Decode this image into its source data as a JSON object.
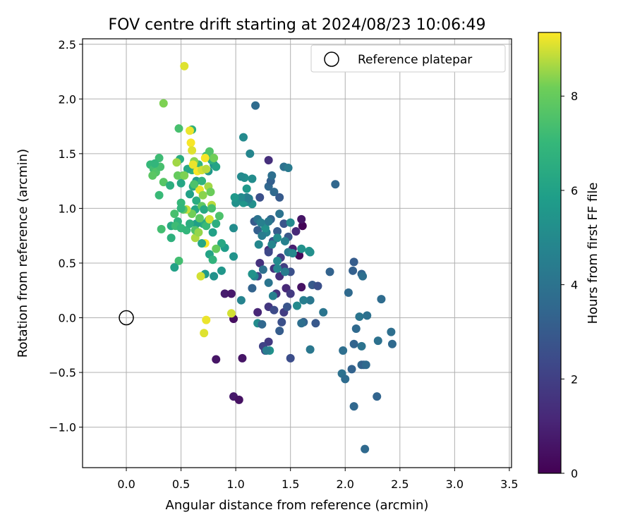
{
  "chart_data": {
    "type": "scatter",
    "title": "FOV centre drift starting at 2024/08/23 10:06:49",
    "xlabel": "Angular distance from reference (arcmin)",
    "ylabel": "Rotation from reference (arcmin)",
    "xlim": [
      -0.4,
      3.52
    ],
    "ylim": [
      -1.37,
      2.55
    ],
    "x_ticks": [
      0.0,
      0.5,
      1.0,
      1.5,
      2.0,
      2.5,
      3.0,
      3.5
    ],
    "x_tick_labels": [
      "0.0",
      "0.5",
      "1.0",
      "1.5",
      "2.0",
      "2.5",
      "3.0",
      "3.5"
    ],
    "y_ticks": [
      -1.0,
      -0.5,
      0.0,
      0.5,
      1.0,
      1.5,
      2.0,
      2.5
    ],
    "y_tick_labels": [
      "−1.0",
      "−0.5",
      "0.0",
      "0.5",
      "1.0",
      "1.5",
      "2.0",
      "2.5"
    ],
    "grid": true,
    "legend": {
      "position": "top-right",
      "entries": [
        "Reference platepar"
      ]
    },
    "reference_point": {
      "x": 0.0,
      "y": 0.0
    },
    "colorbar": {
      "label": "Hours from first FF file",
      "range": [
        0,
        9.35
      ],
      "ticks": [
        0,
        2,
        4,
        6,
        8
      ],
      "tick_labels": [
        "0",
        "2",
        "4",
        "6",
        "8"
      ],
      "colormap": "viridis"
    },
    "points": [
      {
        "x": 1.61,
        "y": 0.84,
        "c": 0.1
      },
      {
        "x": 1.6,
        "y": 0.9,
        "c": 0.6
      },
      {
        "x": 1.52,
        "y": 0.63,
        "c": 0.9
      },
      {
        "x": 1.58,
        "y": 0.57,
        "c": 0.2
      },
      {
        "x": 1.55,
        "y": 0.79,
        "c": 1.2
      },
      {
        "x": 1.6,
        "y": 0.28,
        "c": 0.5
      },
      {
        "x": 0.9,
        "y": 0.22,
        "c": 0.8
      },
      {
        "x": 0.96,
        "y": 0.22,
        "c": 0.7
      },
      {
        "x": 0.98,
        "y": -0.01,
        "c": 0.4
      },
      {
        "x": 0.82,
        "y": -0.38,
        "c": 0.6
      },
      {
        "x": 0.98,
        "y": -0.72,
        "c": 0.7
      },
      {
        "x": 1.03,
        "y": -0.75,
        "c": 0.5
      },
      {
        "x": 1.06,
        "y": -0.37,
        "c": 0.6
      },
      {
        "x": 1.22,
        "y": 0.5,
        "c": 1.5
      },
      {
        "x": 1.3,
        "y": 0.62,
        "c": 1.3
      },
      {
        "x": 1.35,
        "y": 0.45,
        "c": 1.6
      },
      {
        "x": 1.4,
        "y": 0.38,
        "c": 1.4
      },
      {
        "x": 1.46,
        "y": 0.27,
        "c": 1.2
      },
      {
        "x": 1.5,
        "y": 0.22,
        "c": 1.8
      },
      {
        "x": 1.3,
        "y": 0.1,
        "c": 1.7
      },
      {
        "x": 1.2,
        "y": 0.05,
        "c": 1.1
      },
      {
        "x": 1.3,
        "y": -0.22,
        "c": 1.8
      },
      {
        "x": 1.25,
        "y": -0.26,
        "c": 2.1
      },
      {
        "x": 1.27,
        "y": -0.3,
        "c": 1.9
      },
      {
        "x": 1.5,
        "y": -0.37,
        "c": 2.5
      },
      {
        "x": 1.44,
        "y": 0.05,
        "c": 1.9
      },
      {
        "x": 1.37,
        "y": 0.22,
        "c": 1.6
      },
      {
        "x": 1.2,
        "y": 0.38,
        "c": 2.2
      },
      {
        "x": 1.44,
        "y": 0.46,
        "c": 2.0
      },
      {
        "x": 1.5,
        "y": 0.42,
        "c": 2.6
      },
      {
        "x": 1.41,
        "y": 0.55,
        "c": 1.9
      },
      {
        "x": 1.3,
        "y": 0.6,
        "c": 2.3
      },
      {
        "x": 1.34,
        "y": 0.7,
        "c": 2.7
      },
      {
        "x": 1.44,
        "y": 0.86,
        "c": 2.8
      },
      {
        "x": 1.3,
        "y": 1.44,
        "c": 1.4
      },
      {
        "x": 1.22,
        "y": 1.1,
        "c": 2.6
      },
      {
        "x": 1.17,
        "y": 0.88,
        "c": 3.0
      },
      {
        "x": 1.2,
        "y": 0.8,
        "c": 3.2
      },
      {
        "x": 1.32,
        "y": 0.9,
        "c": 3.4
      },
      {
        "x": 1.38,
        "y": 0.79,
        "c": 3.1
      },
      {
        "x": 1.48,
        "y": 0.74,
        "c": 2.9
      },
      {
        "x": 1.3,
        "y": 1.2,
        "c": 3.5
      },
      {
        "x": 1.32,
        "y": 1.25,
        "c": 3.2
      },
      {
        "x": 1.35,
        "y": 1.15,
        "c": 3.6
      },
      {
        "x": 1.4,
        "y": 1.1,
        "c": 3.0
      },
      {
        "x": 1.44,
        "y": 1.38,
        "c": 3.9
      },
      {
        "x": 1.48,
        "y": 1.37,
        "c": 4.3
      },
      {
        "x": 1.33,
        "y": 1.3,
        "c": 3.8
      },
      {
        "x": 1.18,
        "y": 1.94,
        "c": 3.7
      },
      {
        "x": 1.91,
        "y": 1.22,
        "c": 3.5
      },
      {
        "x": 1.86,
        "y": 0.42,
        "c": 3.3
      },
      {
        "x": 2.03,
        "y": 0.23,
        "c": 3.6
      },
      {
        "x": 2.07,
        "y": 0.43,
        "c": 3.2
      },
      {
        "x": 2.08,
        "y": 0.51,
        "c": 3.1
      },
      {
        "x": 2.15,
        "y": 0.4,
        "c": 3.4
      },
      {
        "x": 2.16,
        "y": 0.38,
        "c": 3.8
      },
      {
        "x": 2.33,
        "y": 0.17,
        "c": 3.7
      },
      {
        "x": 2.2,
        "y": 0.02,
        "c": 3.9
      },
      {
        "x": 2.13,
        "y": 0.01,
        "c": 4.1
      },
      {
        "x": 2.1,
        "y": -0.1,
        "c": 3.6
      },
      {
        "x": 2.42,
        "y": -0.13,
        "c": 3.8
      },
      {
        "x": 2.43,
        "y": -0.24,
        "c": 3.6
      },
      {
        "x": 2.3,
        "y": -0.21,
        "c": 3.9
      },
      {
        "x": 2.15,
        "y": -0.26,
        "c": 4.0
      },
      {
        "x": 2.08,
        "y": -0.24,
        "c": 3.4
      },
      {
        "x": 1.98,
        "y": -0.3,
        "c": 3.8
      },
      {
        "x": 2.15,
        "y": -0.43,
        "c": 3.5
      },
      {
        "x": 2.17,
        "y": -0.43,
        "c": 3.2
      },
      {
        "x": 2.19,
        "y": -0.43,
        "c": 3.6
      },
      {
        "x": 2.06,
        "y": -0.47,
        "c": 3.3
      },
      {
        "x": 1.97,
        "y": -0.51,
        "c": 3.9
      },
      {
        "x": 2.0,
        "y": -0.56,
        "c": 3.7
      },
      {
        "x": 2.08,
        "y": -0.81,
        "c": 3.5
      },
      {
        "x": 2.29,
        "y": -0.72,
        "c": 3.4
      },
      {
        "x": 2.18,
        "y": -1.2,
        "c": 3.6
      },
      {
        "x": 1.7,
        "y": 0.3,
        "c": 3.0
      },
      {
        "x": 1.75,
        "y": 0.29,
        "c": 2.6
      },
      {
        "x": 1.68,
        "y": 0.16,
        "c": 4.2
      },
      {
        "x": 1.62,
        "y": 0.16,
        "c": 4.5
      },
      {
        "x": 1.56,
        "y": 0.11,
        "c": 5.0
      },
      {
        "x": 1.62,
        "y": -0.04,
        "c": 3.3
      },
      {
        "x": 1.6,
        "y": -0.05,
        "c": 3.8
      },
      {
        "x": 1.73,
        "y": -0.05,
        "c": 2.9
      },
      {
        "x": 1.8,
        "y": 0.05,
        "c": 4.1
      },
      {
        "x": 1.68,
        "y": -0.29,
        "c": 4.2
      },
      {
        "x": 1.35,
        "y": 0.07,
        "c": 2.4
      },
      {
        "x": 1.42,
        "y": -0.04,
        "c": 2.6
      },
      {
        "x": 1.47,
        "y": 0.1,
        "c": 2.8
      },
      {
        "x": 1.4,
        "y": -0.12,
        "c": 3.1
      },
      {
        "x": 1.31,
        "y": -0.3,
        "c": 5.3
      },
      {
        "x": 1.28,
        "y": -0.3,
        "c": 4.4
      },
      {
        "x": 1.2,
        "y": -0.05,
        "c": 5.1
      },
      {
        "x": 1.24,
        "y": -0.06,
        "c": 3.5
      },
      {
        "x": 1.05,
        "y": 0.16,
        "c": 4.7
      },
      {
        "x": 1.15,
        "y": 0.27,
        "c": 3.3
      },
      {
        "x": 1.17,
        "y": 0.38,
        "c": 4.8
      },
      {
        "x": 1.15,
        "y": 0.4,
        "c": 5.4
      },
      {
        "x": 1.25,
        "y": 0.44,
        "c": 3.9
      },
      {
        "x": 1.3,
        "y": 0.32,
        "c": 4.1
      },
      {
        "x": 1.34,
        "y": 0.2,
        "c": 4.6
      },
      {
        "x": 1.38,
        "y": 0.45,
        "c": 4.9
      },
      {
        "x": 1.45,
        "y": 0.42,
        "c": 4.4
      },
      {
        "x": 1.38,
        "y": 0.52,
        "c": 5.0
      },
      {
        "x": 1.48,
        "y": 0.6,
        "c": 4.3
      },
      {
        "x": 1.52,
        "y": 0.59,
        "c": 4.9
      },
      {
        "x": 1.6,
        "y": 0.63,
        "c": 5.3
      },
      {
        "x": 1.67,
        "y": 0.61,
        "c": 5.6
      },
      {
        "x": 1.68,
        "y": 0.6,
        "c": 5.2
      },
      {
        "x": 1.5,
        "y": 0.87,
        "c": 5.0
      },
      {
        "x": 1.45,
        "y": 0.7,
        "c": 4.6
      },
      {
        "x": 1.38,
        "y": 0.73,
        "c": 5.1
      },
      {
        "x": 1.33,
        "y": 0.67,
        "c": 4.8
      },
      {
        "x": 1.28,
        "y": 0.78,
        "c": 4.7
      },
      {
        "x": 1.24,
        "y": 0.75,
        "c": 4.4
      },
      {
        "x": 1.27,
        "y": 0.82,
        "c": 5.3
      },
      {
        "x": 1.3,
        "y": 0.88,
        "c": 4.2
      },
      {
        "x": 1.2,
        "y": 0.9,
        "c": 4.0
      },
      {
        "x": 1.23,
        "y": 0.87,
        "c": 4.6
      },
      {
        "x": 1.21,
        "y": 0.67,
        "c": 4.9
      },
      {
        "x": 1.4,
        "y": 0.95,
        "c": 4.0
      },
      {
        "x": 1.15,
        "y": 1.04,
        "c": 5.2
      },
      {
        "x": 1.1,
        "y": 1.06,
        "c": 4.9
      },
      {
        "x": 1.07,
        "y": 1.05,
        "c": 5.5
      },
      {
        "x": 1.1,
        "y": 1.1,
        "c": 4.7
      },
      {
        "x": 1.05,
        "y": 1.1,
        "c": 5.0
      },
      {
        "x": 1.0,
        "y": 1.05,
        "c": 5.3
      },
      {
        "x": 1.12,
        "y": 1.09,
        "c": 4.5
      },
      {
        "x": 1.15,
        "y": 1.27,
        "c": 5.1
      },
      {
        "x": 1.08,
        "y": 1.28,
        "c": 5.2
      },
      {
        "x": 1.05,
        "y": 1.29,
        "c": 5.0
      },
      {
        "x": 1.1,
        "y": 1.18,
        "c": 5.6
      },
      {
        "x": 1.13,
        "y": 1.5,
        "c": 4.8
      },
      {
        "x": 1.07,
        "y": 1.65,
        "c": 5.0
      },
      {
        "x": 0.99,
        "y": 1.1,
        "c": 5.6
      },
      {
        "x": 0.98,
        "y": 0.82,
        "c": 5.1
      },
      {
        "x": 0.9,
        "y": 0.64,
        "c": 5.8
      },
      {
        "x": 0.98,
        "y": 0.56,
        "c": 5.4
      },
      {
        "x": 0.87,
        "y": 0.68,
        "c": 6.3
      },
      {
        "x": 0.87,
        "y": 0.43,
        "c": 5.5
      },
      {
        "x": 0.72,
        "y": 0.4,
        "c": 5.7
      },
      {
        "x": 0.8,
        "y": 0.38,
        "c": 5.3
      },
      {
        "x": 0.76,
        "y": 0.58,
        "c": 6.1
      },
      {
        "x": 0.75,
        "y": 0.89,
        "c": 5.8
      },
      {
        "x": 0.79,
        "y": 0.78,
        "c": 6.0
      },
      {
        "x": 0.7,
        "y": 0.86,
        "c": 6.4
      },
      {
        "x": 0.64,
        "y": 0.86,
        "c": 5.9
      },
      {
        "x": 0.63,
        "y": 0.99,
        "c": 6.2
      },
      {
        "x": 0.58,
        "y": 1.13,
        "c": 6.0
      },
      {
        "x": 0.64,
        "y": 1.07,
        "c": 6.5
      },
      {
        "x": 0.61,
        "y": 1.2,
        "c": 6.3
      },
      {
        "x": 0.64,
        "y": 1.25,
        "c": 5.7
      },
      {
        "x": 0.69,
        "y": 1.25,
        "c": 6.8
      },
      {
        "x": 0.75,
        "y": 1.34,
        "c": 5.6
      },
      {
        "x": 0.8,
        "y": 1.4,
        "c": 5.4
      },
      {
        "x": 0.78,
        "y": 1.44,
        "c": 6.6
      },
      {
        "x": 0.73,
        "y": 1.48,
        "c": 7.1
      },
      {
        "x": 0.66,
        "y": 1.4,
        "c": 6.9
      },
      {
        "x": 0.6,
        "y": 1.35,
        "c": 6.7
      },
      {
        "x": 0.56,
        "y": 1.36,
        "c": 6.3
      },
      {
        "x": 0.52,
        "y": 1.3,
        "c": 7.5
      },
      {
        "x": 0.5,
        "y": 1.23,
        "c": 6.2
      },
      {
        "x": 0.49,
        "y": 1.45,
        "c": 6.5
      },
      {
        "x": 0.6,
        "y": 1.72,
        "c": 6.7
      },
      {
        "x": 0.48,
        "y": 1.73,
        "c": 7.4
      },
      {
        "x": 0.34,
        "y": 1.96,
        "c": 8.3
      },
      {
        "x": 0.53,
        "y": 2.3,
        "c": 9.1
      },
      {
        "x": 0.3,
        "y": 1.46,
        "c": 7.2
      },
      {
        "x": 0.22,
        "y": 1.4,
        "c": 7.0
      },
      {
        "x": 0.25,
        "y": 1.36,
        "c": 7.3
      },
      {
        "x": 0.27,
        "y": 1.33,
        "c": 7.6
      },
      {
        "x": 0.24,
        "y": 1.3,
        "c": 7.8
      },
      {
        "x": 0.31,
        "y": 1.38,
        "c": 7.4
      },
      {
        "x": 0.26,
        "y": 1.41,
        "c": 6.9
      },
      {
        "x": 0.3,
        "y": 1.12,
        "c": 7.1
      },
      {
        "x": 0.34,
        "y": 1.24,
        "c": 7.7
      },
      {
        "x": 0.4,
        "y": 1.21,
        "c": 6.6
      },
      {
        "x": 0.44,
        "y": 0.95,
        "c": 7.4
      },
      {
        "x": 0.5,
        "y": 1.05,
        "c": 7.0
      },
      {
        "x": 0.47,
        "y": 0.88,
        "c": 6.8
      },
      {
        "x": 0.41,
        "y": 0.84,
        "c": 6.4
      },
      {
        "x": 0.45,
        "y": 0.84,
        "c": 7.2
      },
      {
        "x": 0.32,
        "y": 0.81,
        "c": 7.3
      },
      {
        "x": 0.41,
        "y": 0.73,
        "c": 6.7
      },
      {
        "x": 0.5,
        "y": 0.82,
        "c": 7.0
      },
      {
        "x": 0.55,
        "y": 0.8,
        "c": 6.9
      },
      {
        "x": 0.63,
        "y": 0.73,
        "c": 8.7
      },
      {
        "x": 0.6,
        "y": 0.95,
        "c": 8.2
      },
      {
        "x": 0.55,
        "y": 0.99,
        "c": 8.9
      },
      {
        "x": 0.63,
        "y": 0.8,
        "c": 7.6
      },
      {
        "x": 0.66,
        "y": 0.78,
        "c": 8.5
      },
      {
        "x": 0.67,
        "y": 0.91,
        "c": 7.8
      },
      {
        "x": 0.69,
        "y": 1.02,
        "c": 7.9
      },
      {
        "x": 0.71,
        "y": 0.99,
        "c": 6.3
      },
      {
        "x": 0.73,
        "y": 0.84,
        "c": 7.1
      },
      {
        "x": 0.76,
        "y": 0.9,
        "c": 9.0
      },
      {
        "x": 0.78,
        "y": 1.03,
        "c": 8.8
      },
      {
        "x": 0.78,
        "y": 1.0,
        "c": 7.4
      },
      {
        "x": 0.82,
        "y": 0.86,
        "c": 6.6
      },
      {
        "x": 0.85,
        "y": 0.93,
        "c": 7.5
      },
      {
        "x": 0.72,
        "y": 0.68,
        "c": 9.3
      },
      {
        "x": 0.82,
        "y": 0.63,
        "c": 8.0
      },
      {
        "x": 0.79,
        "y": 0.53,
        "c": 6.8
      },
      {
        "x": 0.69,
        "y": 0.68,
        "c": 6.2
      },
      {
        "x": 0.68,
        "y": 0.38,
        "c": 9.0
      },
      {
        "x": 0.48,
        "y": 0.52,
        "c": 7.3
      },
      {
        "x": 0.44,
        "y": 0.46,
        "c": 6.0
      },
      {
        "x": 0.73,
        "y": -0.02,
        "c": 9.2
      },
      {
        "x": 0.71,
        "y": -0.14,
        "c": 9.1
      },
      {
        "x": 0.96,
        "y": 0.04,
        "c": 9.0
      },
      {
        "x": 0.67,
        "y": 1.17,
        "c": 9.2
      },
      {
        "x": 0.7,
        "y": 1.12,
        "c": 8.4
      },
      {
        "x": 0.75,
        "y": 1.2,
        "c": 8.6
      },
      {
        "x": 0.77,
        "y": 1.15,
        "c": 8.1
      },
      {
        "x": 0.65,
        "y": 1.34,
        "c": 9.3
      },
      {
        "x": 0.69,
        "y": 1.35,
        "c": 9.0
      },
      {
        "x": 0.62,
        "y": 1.43,
        "c": 8.4
      },
      {
        "x": 0.61,
        "y": 1.4,
        "c": 9.2
      },
      {
        "x": 0.59,
        "y": 1.6,
        "c": 9.3
      },
      {
        "x": 0.6,
        "y": 1.53,
        "c": 9.1
      },
      {
        "x": 0.58,
        "y": 1.71,
        "c": 9.2
      },
      {
        "x": 0.46,
        "y": 1.42,
        "c": 8.6
      },
      {
        "x": 0.47,
        "y": 1.3,
        "c": 8.0
      },
      {
        "x": 0.53,
        "y": 1.3,
        "c": 8.3
      },
      {
        "x": 0.76,
        "y": 1.52,
        "c": 7.6
      },
      {
        "x": 0.8,
        "y": 1.46,
        "c": 8.2
      },
      {
        "x": 0.72,
        "y": 1.46,
        "c": 9.3
      },
      {
        "x": 0.73,
        "y": 1.36,
        "c": 8.8
      },
      {
        "x": 0.82,
        "y": 1.38,
        "c": 6.1
      },
      {
        "x": 0.62,
        "y": 1.22,
        "c": 7.5
      },
      {
        "x": 0.58,
        "y": 0.86,
        "c": 6.6
      },
      {
        "x": 0.52,
        "y": 0.99,
        "c": 7.7
      },
      {
        "x": 0.5,
        "y": 1.0,
        "c": 6.9
      }
    ]
  }
}
